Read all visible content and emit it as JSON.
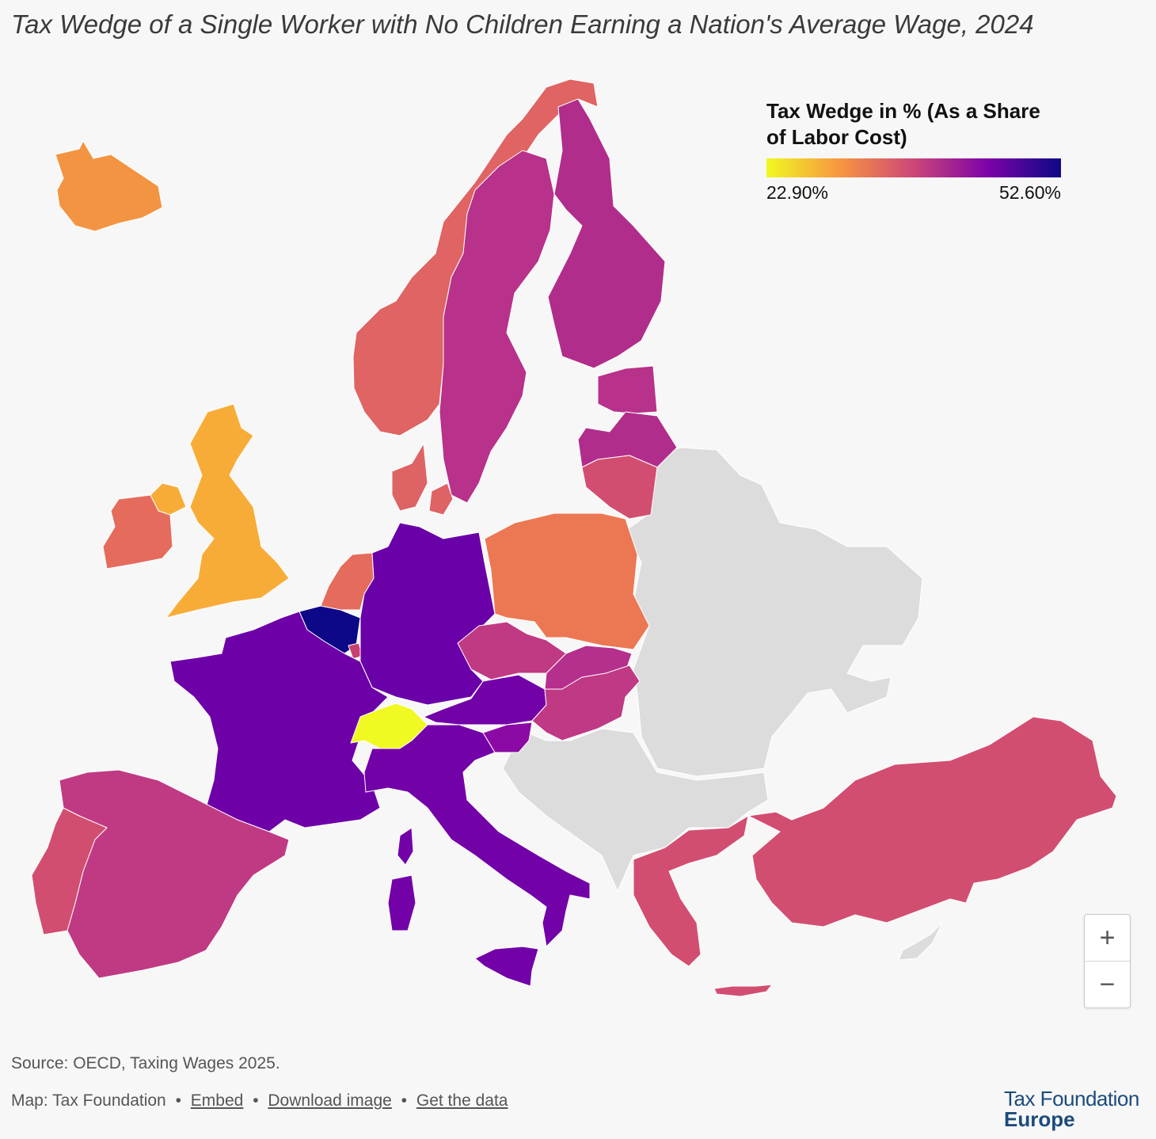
{
  "title": "Tax Wedge of a Single Worker with No Children Earning a Nation's Average Wage, 2024",
  "legend": {
    "title": "Tax Wedge in % (As a Share of Labor Cost)",
    "min_label": "22.90%",
    "max_label": "52.60%",
    "gradient_colors": [
      "#f0f921",
      "#f89540",
      "#cc4778",
      "#7e03a8",
      "#0d0887"
    ],
    "no_data_color": "#dcdcdc"
  },
  "regions": [
    {
      "name": "iceland",
      "color": "#f39442"
    },
    {
      "name": "norway",
      "color": "#df6463"
    },
    {
      "name": "sweden",
      "color": "#b8318a"
    },
    {
      "name": "finland",
      "color": "#b12d8b"
    },
    {
      "name": "estonia",
      "color": "#b8318a"
    },
    {
      "name": "latvia",
      "color": "#b12d8b"
    },
    {
      "name": "lithuania",
      "color": "#d24e71"
    },
    {
      "name": "denmark",
      "color": "#de6365"
    },
    {
      "name": "united-kingdom",
      "color": "#f8ac38"
    },
    {
      "name": "ireland",
      "color": "#e56c5d"
    },
    {
      "name": "northern-ireland",
      "color": "#f8ac38"
    },
    {
      "name": "netherlands",
      "color": "#e56c5d"
    },
    {
      "name": "belgium",
      "color": "#0d0887"
    },
    {
      "name": "luxembourg",
      "color": "#c8406e"
    },
    {
      "name": "germany",
      "color": "#6a00a8"
    },
    {
      "name": "poland",
      "color": "#ec7853"
    },
    {
      "name": "czechia",
      "color": "#c03a83"
    },
    {
      "name": "slovakia",
      "color": "#b52f8c"
    },
    {
      "name": "austria",
      "color": "#7201a8"
    },
    {
      "name": "hungary",
      "color": "#bf3984"
    },
    {
      "name": "slovenia",
      "color": "#8b0aa5"
    },
    {
      "name": "france",
      "color": "#6e00a8"
    },
    {
      "name": "switzerland",
      "color": "#f0f921"
    },
    {
      "name": "italy",
      "color": "#7301a8"
    },
    {
      "name": "sardinia",
      "color": "#7301a8"
    },
    {
      "name": "corsica",
      "color": "#7301a8"
    },
    {
      "name": "sicily",
      "color": "#7301a8"
    },
    {
      "name": "spain",
      "color": "#c03a83"
    },
    {
      "name": "portugal",
      "color": "#d24e71"
    },
    {
      "name": "greece",
      "color": "#d24e71"
    },
    {
      "name": "crete",
      "color": "#d24e71"
    },
    {
      "name": "turkey",
      "color": "#d24e71"
    },
    {
      "name": "eastern-europe",
      "color": "#dcdcdc"
    },
    {
      "name": "balkans",
      "color": "#dcdcdc"
    },
    {
      "name": "cyprus",
      "color": "#dcdcdc"
    }
  ],
  "zoom": {
    "in_label": "+",
    "out_label": "−"
  },
  "source": "Source: OECD, Taxing Wages 2025.",
  "credits": {
    "map_label": "Map: Tax Foundation",
    "separator": "•",
    "embed": "Embed",
    "download": "Download image",
    "data": "Get the data"
  },
  "brand": {
    "line1": "Tax Foundation",
    "line2": "Europe"
  }
}
